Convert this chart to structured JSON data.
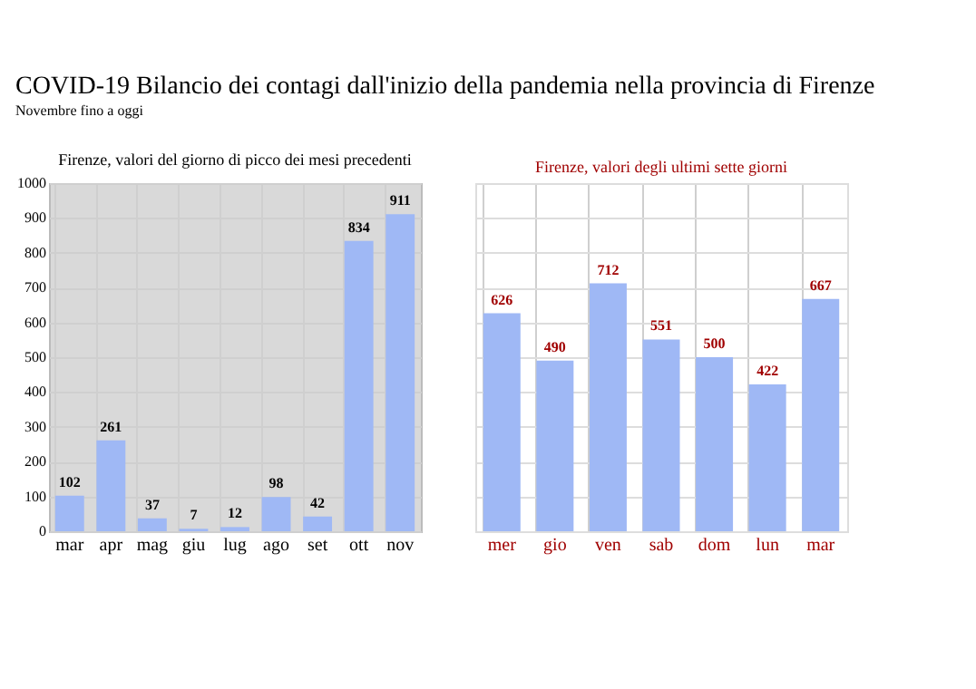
{
  "chart_data": [
    {
      "type": "bar",
      "title": "COVID-19 Bilancio dei contagi dall'inizio della pandemia nella provincia di Firenze",
      "subtitle": "Novembre fino a oggi",
      "annotations": [
        "Firenze, valori del giorno di picco dei mesi precedenti"
      ],
      "categories": [
        "mar",
        "apr",
        "mag",
        "giu",
        "lug",
        "ago",
        "set",
        "ott",
        "nov"
      ],
      "values": [
        102,
        261,
        37,
        7,
        12,
        98,
        42,
        834,
        911
      ],
      "color": "#9fb8f5",
      "ylim": [
        0,
        1000
      ],
      "yticks": [
        0,
        100,
        200,
        300,
        400,
        500,
        600,
        700,
        800,
        900,
        1000
      ],
      "grid": true,
      "data_labels": true
    },
    {
      "type": "bar",
      "annotations": [
        "Firenze, valori degli ultimi sette giorni"
      ],
      "categories": [
        "mer",
        "gio",
        "ven",
        "sab",
        "dom",
        "lun",
        "mar"
      ],
      "values": [
        626,
        490,
        712,
        551,
        500,
        422,
        667
      ],
      "color": "#9fb8f5",
      "ylim": [
        0,
        1000
      ],
      "yticks": [
        {
          "value": 0,
          "label": null
        },
        {
          "value": 100,
          "label": null
        },
        {
          "value": 200,
          "label": null
        },
        {
          "value": 300,
          "label": null
        },
        {
          "value": 400,
          "label": null
        },
        {
          "value": 500,
          "label": null
        },
        {
          "value": 600,
          "label": null
        },
        {
          "value": 700,
          "label": null
        },
        {
          "value": 800,
          "label": null
        },
        {
          "value": 900,
          "label": null
        },
        {
          "value": 1000,
          "label": null
        }
      ],
      "tick_labels": "x",
      "grid": true,
      "data_labels": true
    }
  ]
}
